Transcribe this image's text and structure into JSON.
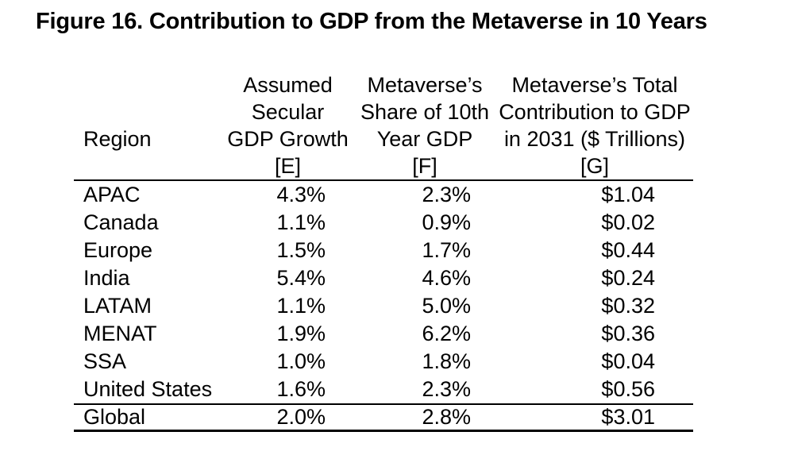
{
  "title": "Figure 16. Contribution to GDP from the Metaverse in 10 Years",
  "table": {
    "columns": [
      {
        "header_lines": [
          "Region"
        ],
        "label": ""
      },
      {
        "header_lines": [
          "Assumed",
          "Secular",
          "GDP Growth"
        ],
        "label": "[E]"
      },
      {
        "header_lines": [
          "Metaverse’s",
          "Share of 10th",
          "Year GDP"
        ],
        "label": "[F]"
      },
      {
        "header_lines": [
          "Metaverse’s Total",
          "Contribution to GDP",
          "in 2031 ($ Trillions)"
        ],
        "label": "[G]"
      }
    ],
    "rows": [
      {
        "region": "APAC",
        "e": "4.3%",
        "f": "2.3%",
        "g": "$1.04"
      },
      {
        "region": "Canada",
        "e": "1.1%",
        "f": "0.9%",
        "g": "$0.02"
      },
      {
        "region": "Europe",
        "e": "1.5%",
        "f": "1.7%",
        "g": "$0.44"
      },
      {
        "region": "India",
        "e": "5.4%",
        "f": "4.6%",
        "g": "$0.24"
      },
      {
        "region": "LATAM",
        "e": "1.1%",
        "f": "5.0%",
        "g": "$0.32"
      },
      {
        "region": "MENAT",
        "e": "1.9%",
        "f": "6.2%",
        "g": "$0.36"
      },
      {
        "region": "SSA",
        "e": "1.0%",
        "f": "1.8%",
        "g": "$0.04"
      },
      {
        "region": "United States",
        "e": "1.6%",
        "f": "2.3%",
        "g": "$0.56"
      }
    ],
    "total_row": {
      "region": "Global",
      "e": "2.0%",
      "f": "2.8%",
      "g": "$3.01"
    }
  },
  "colors": {
    "text": "#000000",
    "background": "#ffffff",
    "rule": "#000000"
  },
  "chart_data": {
    "type": "table",
    "title": "Figure 16. Contribution to GDP from the Metaverse in 10 Years",
    "columns": [
      "Region",
      "Assumed Secular GDP Growth [E]",
      "Metaverse’s Share of 10th Year GDP [F]",
      "Metaverse’s Total Contribution to GDP in 2031 ($ Trillions) [G]"
    ],
    "rows": [
      [
        "APAC",
        "4.3%",
        "2.3%",
        "$1.04"
      ],
      [
        "Canada",
        "1.1%",
        "0.9%",
        "$0.02"
      ],
      [
        "Europe",
        "1.5%",
        "1.7%",
        "$0.44"
      ],
      [
        "India",
        "5.4%",
        "4.6%",
        "$0.24"
      ],
      [
        "LATAM",
        "1.1%",
        "5.0%",
        "$0.32"
      ],
      [
        "MENAT",
        "1.9%",
        "6.2%",
        "$0.36"
      ],
      [
        "SSA",
        "1.0%",
        "1.8%",
        "$0.04"
      ],
      [
        "United States",
        "1.6%",
        "2.3%",
        "$0.56"
      ],
      [
        "Global",
        "2.0%",
        "2.8%",
        "$3.01"
      ]
    ]
  }
}
